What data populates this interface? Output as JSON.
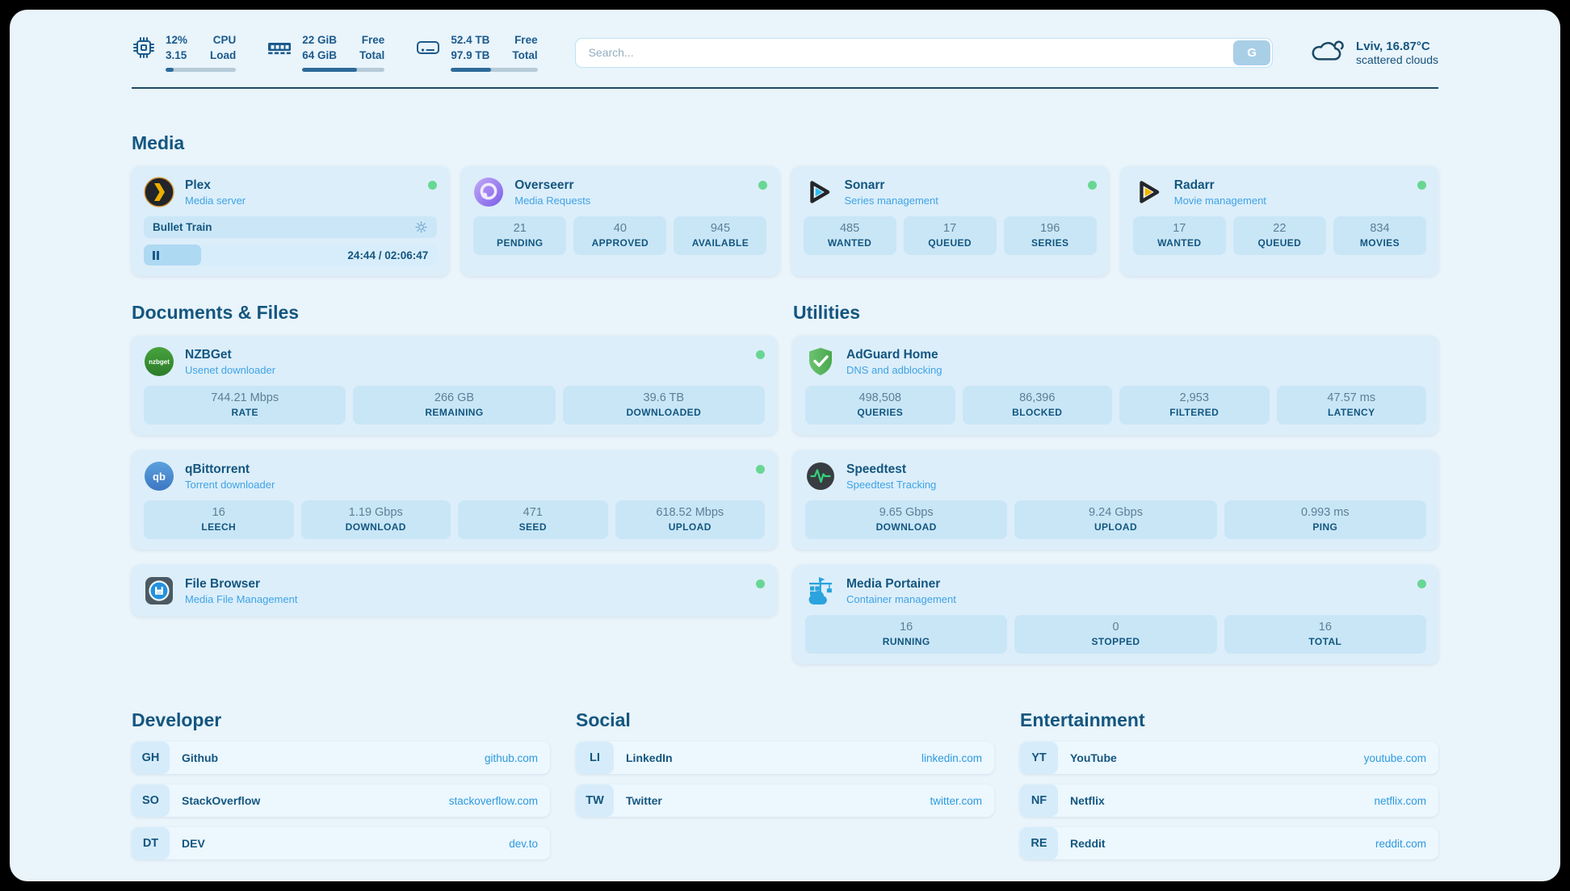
{
  "topbar": {
    "stats": [
      {
        "id": "cpu",
        "values": [
          "12%",
          "3.15"
        ],
        "labels": [
          "CPU",
          "Load"
        ],
        "progress_pct": 12
      },
      {
        "id": "memory",
        "values": [
          "22 GiB",
          "64 GiB"
        ],
        "labels": [
          "Free",
          "Total"
        ],
        "progress_pct": 66
      },
      {
        "id": "disk",
        "values": [
          "52.4 TB",
          "97.9 TB"
        ],
        "labels": [
          "Free",
          "Total"
        ],
        "progress_pct": 46
      }
    ],
    "search": {
      "placeholder": "Search...",
      "button_label": "G"
    },
    "weather": {
      "headline": "Lviv, 16.87°C",
      "condition": "scattered clouds"
    }
  },
  "sections": {
    "media": "Media",
    "documents": "Documents & Files",
    "utilities": "Utilities",
    "developer": "Developer",
    "social": "Social",
    "entertainment": "Entertainment"
  },
  "services": {
    "plex": {
      "name": "Plex",
      "subtitle": "Media server",
      "status": "online",
      "player": {
        "title": "Bullet Train",
        "time": "24:44 / 02:06:47",
        "progress_pct": 19.5
      }
    },
    "overseerr": {
      "name": "Overseerr",
      "subtitle": "Media Requests",
      "status": "online",
      "stats": [
        {
          "value": "21",
          "label": "PENDING"
        },
        {
          "value": "40",
          "label": "APPROVED"
        },
        {
          "value": "945",
          "label": "AVAILABLE"
        }
      ]
    },
    "sonarr": {
      "name": "Sonarr",
      "subtitle": "Series management",
      "status": "online",
      "stats": [
        {
          "value": "485",
          "label": "WANTED"
        },
        {
          "value": "17",
          "label": "QUEUED"
        },
        {
          "value": "196",
          "label": "SERIES"
        }
      ]
    },
    "radarr": {
      "name": "Radarr",
      "subtitle": "Movie management",
      "status": "online",
      "stats": [
        {
          "value": "17",
          "label": "WANTED"
        },
        {
          "value": "22",
          "label": "QUEUED"
        },
        {
          "value": "834",
          "label": "MOVIES"
        }
      ]
    },
    "nzbget": {
      "name": "NZBGet",
      "subtitle": "Usenet downloader",
      "status": "online",
      "stats": [
        {
          "value": "744.21 Mbps",
          "label": "RATE"
        },
        {
          "value": "266 GB",
          "label": "REMAINING"
        },
        {
          "value": "39.6 TB",
          "label": "DOWNLOADED"
        }
      ]
    },
    "qbittorrent": {
      "name": "qBittorrent",
      "subtitle": "Torrent downloader",
      "status": "online",
      "stats": [
        {
          "value": "16",
          "label": "LEECH"
        },
        {
          "value": "1.19 Gbps",
          "label": "DOWNLOAD"
        },
        {
          "value": "471",
          "label": "SEED"
        },
        {
          "value": "618.52 Mbps",
          "label": "UPLOAD"
        }
      ]
    },
    "filebrowser": {
      "name": "File Browser",
      "subtitle": "Media File Management",
      "status": "online"
    },
    "adguard": {
      "name": "AdGuard Home",
      "subtitle": "DNS and adblocking",
      "stats": [
        {
          "value": "498,508",
          "label": "QUERIES"
        },
        {
          "value": "86,396",
          "label": "BLOCKED"
        },
        {
          "value": "2,953",
          "label": "FILTERED"
        },
        {
          "value": "47.57 ms",
          "label": "LATENCY"
        }
      ]
    },
    "speedtest": {
      "name": "Speedtest",
      "subtitle": "Speedtest Tracking",
      "stats": [
        {
          "value": "9.65 Gbps",
          "label": "DOWNLOAD"
        },
        {
          "value": "9.24 Gbps",
          "label": "UPLOAD"
        },
        {
          "value": "0.993 ms",
          "label": "PING"
        }
      ]
    },
    "portainer": {
      "name": "Media Portainer",
      "subtitle": "Container management",
      "status": "online",
      "stats": [
        {
          "value": "16",
          "label": "RUNNING"
        },
        {
          "value": "0",
          "label": "STOPPED"
        },
        {
          "value": "16",
          "label": "TOTAL"
        }
      ]
    }
  },
  "bookmarks": {
    "developer": [
      {
        "abbr": "GH",
        "name": "Github",
        "url": "github.com"
      },
      {
        "abbr": "SO",
        "name": "StackOverflow",
        "url": "stackoverflow.com"
      },
      {
        "abbr": "DT",
        "name": "DEV",
        "url": "dev.to"
      }
    ],
    "social": [
      {
        "abbr": "LI",
        "name": "LinkedIn",
        "url": "linkedin.com"
      },
      {
        "abbr": "TW",
        "name": "Twitter",
        "url": "twitter.com"
      }
    ],
    "entertainment": [
      {
        "abbr": "YT",
        "name": "YouTube",
        "url": "youtube.com"
      },
      {
        "abbr": "NF",
        "name": "Netflix",
        "url": "netflix.com"
      },
      {
        "abbr": "RE",
        "name": "Reddit",
        "url": "reddit.com"
      }
    ]
  },
  "colors": {
    "panel_bg": "#e9f4fb",
    "card_bg": "#dceefa",
    "stat_bg": "#c9e6f7",
    "navy_text": "#14567f",
    "subtitle_blue": "#3ea3e6",
    "link_blue": "#2d9ade",
    "value_gray": "#5d7e94",
    "status_online_green": "#68d793",
    "progress_fill": "#2d6b99",
    "progress_track": "#b6cbd8"
  }
}
